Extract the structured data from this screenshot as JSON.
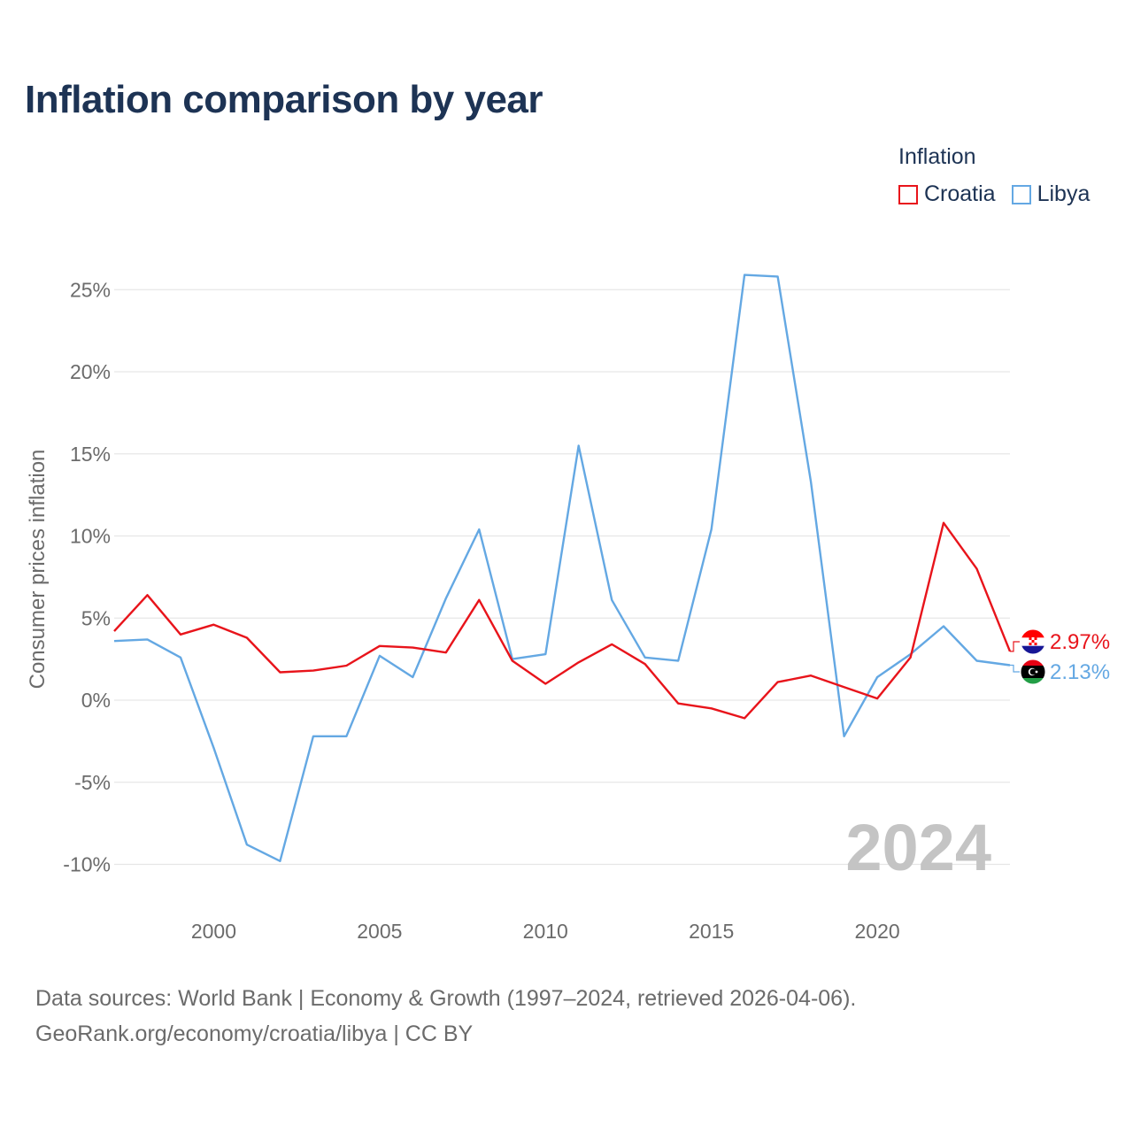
{
  "title": "Inflation comparison by year",
  "legend": {
    "title": "Inflation",
    "items": [
      {
        "label": "Croatia",
        "color": "#e8141b"
      },
      {
        "label": "Libya",
        "color": "#64a8e3"
      }
    ]
  },
  "source": {
    "line1": "Data sources: World Bank | Economy & Growth (1997–2024, retrieved 2026-04-06).",
    "line2": "GeoRank.org/economy/croatia/libya | CC BY"
  },
  "chart_data": {
    "type": "line",
    "ylabel": "Consumer prices inflation",
    "xlabel": "",
    "watermark_year": "2024",
    "x": [
      1997,
      1998,
      1999,
      2000,
      2001,
      2002,
      2003,
      2004,
      2005,
      2006,
      2007,
      2008,
      2009,
      2010,
      2011,
      2012,
      2013,
      2014,
      2015,
      2016,
      2017,
      2018,
      2019,
      2020,
      2021,
      2022,
      2023,
      2024
    ],
    "xlim": [
      1997,
      2024
    ],
    "ylim": [
      -12.5,
      25.9
    ],
    "y_ticks": [
      {
        "value": 25,
        "label": "25%"
      },
      {
        "value": 20,
        "label": "20%"
      },
      {
        "value": 15,
        "label": "15%"
      },
      {
        "value": 10,
        "label": "10%"
      },
      {
        "value": 5,
        "label": "5%"
      },
      {
        "value": 0,
        "label": "0%"
      },
      {
        "value": -5,
        "label": "-5%"
      },
      {
        "value": -10,
        "label": "-10%"
      }
    ],
    "x_ticks": [
      {
        "value": 2000,
        "label": "2000"
      },
      {
        "value": 2005,
        "label": "2005"
      },
      {
        "value": 2010,
        "label": "2010"
      },
      {
        "value": 2015,
        "label": "2015"
      },
      {
        "value": 2020,
        "label": "2020"
      }
    ],
    "series": [
      {
        "name": "Croatia",
        "color": "#e8141b",
        "end_label": "2.97%",
        "values": [
          4.2,
          6.4,
          4.0,
          4.6,
          3.8,
          1.7,
          1.8,
          2.1,
          3.3,
          3.2,
          2.9,
          6.1,
          2.4,
          1.0,
          2.3,
          3.4,
          2.2,
          -0.2,
          -0.5,
          -1.1,
          1.1,
          1.5,
          0.8,
          0.1,
          2.6,
          10.8,
          8.0,
          2.97
        ]
      },
      {
        "name": "Libya",
        "color": "#64a8e3",
        "end_label": "2.13%",
        "values": [
          3.6,
          3.7,
          2.6,
          -2.9,
          -8.8,
          -9.8,
          -2.2,
          -2.2,
          2.7,
          1.4,
          6.2,
          10.4,
          2.5,
          2.8,
          15.5,
          6.1,
          2.6,
          2.4,
          10.4,
          25.9,
          25.8,
          13.3,
          -2.2,
          1.4,
          2.8,
          4.5,
          2.4,
          2.13
        ]
      }
    ]
  }
}
